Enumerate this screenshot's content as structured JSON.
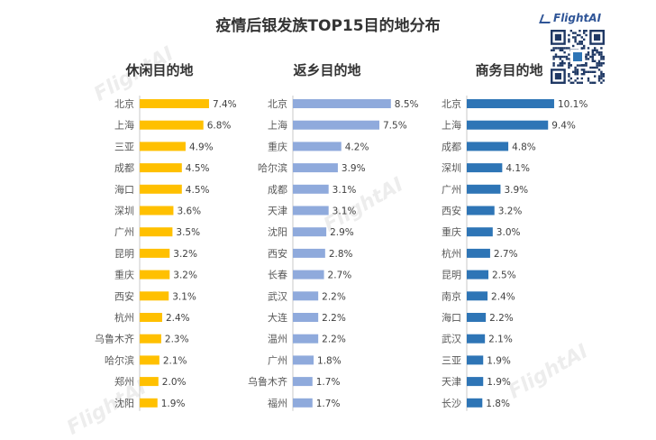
{
  "title": "疫情后银发族TOP15目的地分布",
  "brand": "FlightAI",
  "watermark": "FlightAI",
  "chart_data": [
    {
      "type": "bar",
      "title": "休闲目的地",
      "color": "#ffc000",
      "categories": [
        "北京",
        "上海",
        "三亚",
        "成都",
        "海口",
        "深圳",
        "广州",
        "昆明",
        "重庆",
        "西安",
        "杭州",
        "乌鲁木齐",
        "哈尔滨",
        "郑州",
        "沈阳"
      ],
      "values": [
        7.4,
        6.8,
        4.9,
        4.5,
        4.5,
        3.6,
        3.5,
        3.2,
        3.2,
        3.1,
        2.4,
        2.3,
        2.1,
        2.0,
        1.9
      ],
      "value_labels": [
        "7.4%",
        "6.8%",
        "4.9%",
        "4.5%",
        "4.5%",
        "3.6%",
        "3.5%",
        "3.2%",
        "3.2%",
        "3.1%",
        "2.4%",
        "2.3%",
        "2.1%",
        "2.0%",
        "1.9%"
      ]
    },
    {
      "type": "bar",
      "title": "返乡目的地",
      "color": "#8faadc",
      "categories": [
        "北京",
        "上海",
        "重庆",
        "哈尔滨",
        "成都",
        "天津",
        "沈阳",
        "西安",
        "长春",
        "武汉",
        "大连",
        "温州",
        "广州",
        "乌鲁木齐",
        "福州"
      ],
      "values": [
        8.5,
        7.5,
        4.2,
        3.9,
        3.1,
        3.1,
        2.9,
        2.8,
        2.7,
        2.2,
        2.2,
        2.2,
        1.8,
        1.7,
        1.7
      ],
      "value_labels": [
        "8.5%",
        "7.5%",
        "4.2%",
        "3.9%",
        "3.1%",
        "3.1%",
        "2.9%",
        "2.8%",
        "2.7%",
        "2.2%",
        "2.2%",
        "2.2%",
        "1.8%",
        "1.7%",
        "1.7%"
      ]
    },
    {
      "type": "bar",
      "title": "商务目的地",
      "color": "#2e75b6",
      "categories": [
        "北京",
        "上海",
        "成都",
        "深圳",
        "广州",
        "西安",
        "重庆",
        "杭州",
        "昆明",
        "南京",
        "海口",
        "武汉",
        "三亚",
        "天津",
        "长沙"
      ],
      "values": [
        10.1,
        9.4,
        4.8,
        4.1,
        3.9,
        3.2,
        3.0,
        2.7,
        2.5,
        2.4,
        2.2,
        2.1,
        1.9,
        1.9,
        1.8
      ],
      "value_labels": [
        "10.1%",
        "9.4%",
        "4.8%",
        "4.1%",
        "3.9%",
        "3.2%",
        "3.0%",
        "2.7%",
        "2.5%",
        "2.4%",
        "2.2%",
        "2.1%",
        "1.9%",
        "1.9%",
        "1.8%"
      ]
    }
  ]
}
